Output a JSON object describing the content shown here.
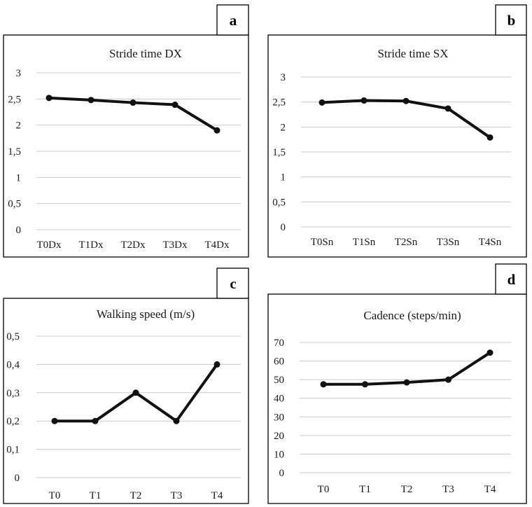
{
  "chart_data": [
    {
      "badge": "a",
      "type": "line",
      "title": "Stride time DX",
      "categories": [
        "T0Dx",
        "T1Dx",
        "T2Dx",
        "T3Dx",
        "T4Dx"
      ],
      "values": [
        2.52,
        2.48,
        2.43,
        2.39,
        1.9
      ],
      "yticks": [
        "0",
        "0,5",
        "1",
        "1,5",
        "2",
        "2,5",
        "3"
      ],
      "ylim": [
        0,
        3
      ],
      "grid": true,
      "xlabel": "",
      "ylabel": ""
    },
    {
      "badge": "b",
      "type": "line",
      "title": "Stride time SX",
      "categories": [
        "T0Sn",
        "T1Sn",
        "T2Sn",
        "T3Sn",
        "T4Sn"
      ],
      "values": [
        2.49,
        2.53,
        2.52,
        2.37,
        1.79
      ],
      "yticks": [
        "0",
        "0,5",
        "1",
        "1,5",
        "2",
        "2,5",
        "3"
      ],
      "ylim": [
        0,
        3
      ],
      "grid": true,
      "xlabel": "",
      "ylabel": ""
    },
    {
      "badge": "c",
      "type": "line",
      "title": "Walking speed (m/s)",
      "categories": [
        "T0",
        "T1",
        "T2",
        "T3",
        "T4"
      ],
      "values": [
        0.2,
        0.2,
        0.3,
        0.2,
        0.4
      ],
      "yticks": [
        "0",
        "0,1",
        "0,2",
        "0,3",
        "0,4",
        "0,5"
      ],
      "ylim": [
        0,
        0.5
      ],
      "grid": true,
      "xlabel": "",
      "ylabel": ""
    },
    {
      "badge": "d",
      "type": "line",
      "title": "Cadence (steps/min)",
      "categories": [
        "T0",
        "T1",
        "T2",
        "T3",
        "T4"
      ],
      "values": [
        47.5,
        47.5,
        48.5,
        50,
        64.5
      ],
      "yticks": [
        "0",
        "10",
        "20",
        "30",
        "40",
        "50",
        "60",
        "70"
      ],
      "ylim": [
        0,
        70
      ],
      "grid": true,
      "xlabel": "",
      "ylabel": ""
    }
  ]
}
